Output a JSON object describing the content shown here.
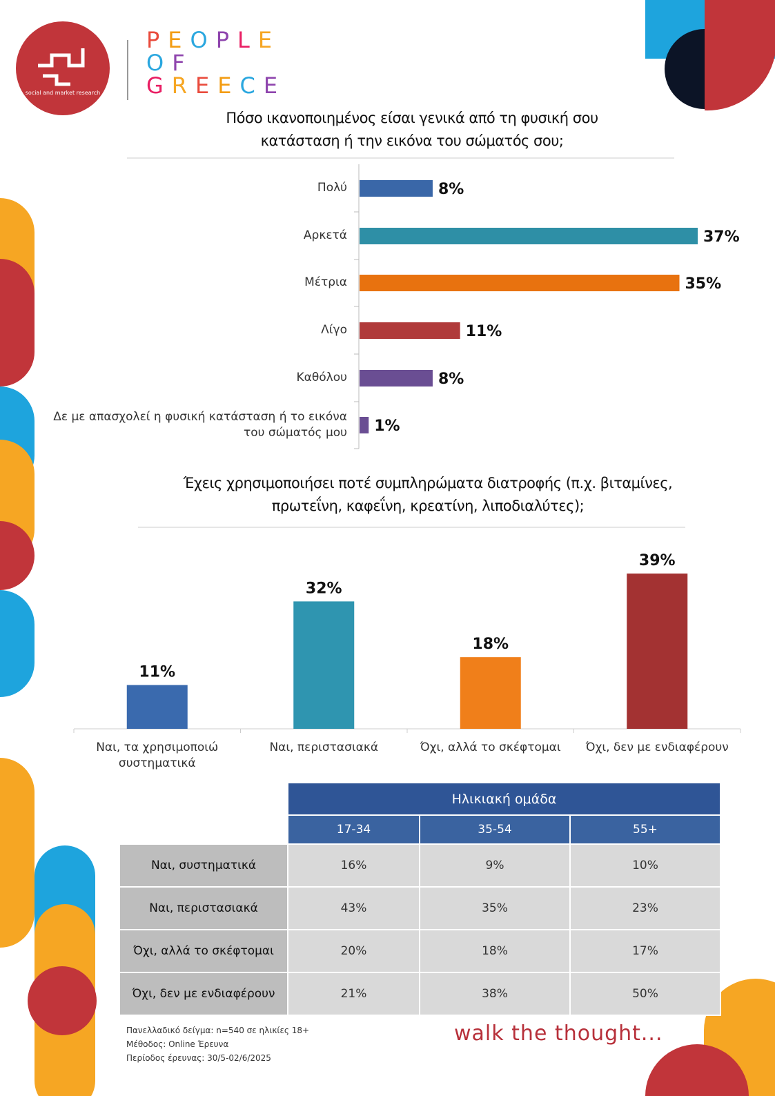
{
  "header": {
    "logo_text": "social and market research",
    "brand": [
      "PEOPLE",
      "OF",
      "GREECE"
    ]
  },
  "chart_data": [
    {
      "type": "bar",
      "orientation": "horizontal",
      "title": "Πόσο ικανοποιημένος είσαι γενικά από τη φυσική σου κατάσταση ή την εικόνα του σώματός σου;",
      "categories": [
        "Πολύ",
        "Αρκετά",
        "Μέτρια",
        "Λίγο",
        "Καθόλου",
        "Δε με απασχολεί η φυσική κατάσταση ή το εικόνα του σώματός μου"
      ],
      "values": [
        8,
        37,
        35,
        11,
        8,
        1
      ],
      "value_labels": [
        "8%",
        "37%",
        "35%",
        "11%",
        "8%",
        "1%"
      ],
      "colors": [
        "#3a67a8",
        "#2e8fa6",
        "#e8720f",
        "#b03a3a",
        "#6a4e93",
        "#6a4e93"
      ]
    },
    {
      "type": "bar",
      "title": "Έχεις χρησιμοποιήσει ποτέ συμπληρώματα διατροφής (π.χ. βιταμίνες, πρωτεΐνη, καφεΐνη, κρεατίνη, λιποδιαλύτες);",
      "categories": [
        "Ναι, τα χρησιμοποιώ συστηματικά",
        "Ναι, περιστασιακά",
        "Όχι, αλλά το σκέφτομαι",
        "Όχι, δεν με ενδιαφέρουν"
      ],
      "values": [
        11,
        32,
        18,
        39
      ],
      "value_labels": [
        "11%",
        "32%",
        "18%",
        "39%"
      ],
      "colors": [
        "#3a6aae",
        "#2f95b0",
        "#f07f1a",
        "#a33232"
      ]
    }
  ],
  "table": {
    "header": "Ηλικιακή ομάδα",
    "columns": [
      "17-34",
      "35-54",
      "55+"
    ],
    "rows": [
      {
        "label": "Ναι, συστηματικά",
        "values": [
          "16%",
          "9%",
          "10%"
        ]
      },
      {
        "label": "Ναι, περιστασιακά",
        "values": [
          "43%",
          "35%",
          "23%"
        ]
      },
      {
        "label": "Όχι, αλλά το σκέφτομαι",
        "values": [
          "20%",
          "18%",
          "17%"
        ]
      },
      {
        "label": "Όχι, δεν με ενδιαφέρουν",
        "values": [
          "21%",
          "38%",
          "50%"
        ]
      }
    ]
  },
  "footer": {
    "notes": [
      "Πανελλαδικό δείγμα: n=540 σε ηλικίες 18+",
      "Μέθοδος: Online Έρευνα",
      "Περίοδος έρευνας: 30/5-02/6/2025"
    ],
    "slogan": "walk the thought..."
  }
}
